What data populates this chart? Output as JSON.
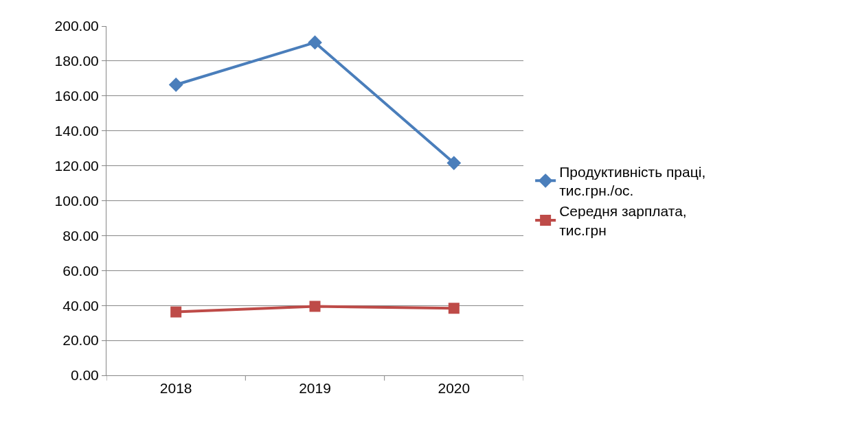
{
  "chart_data": {
    "type": "line",
    "categories": [
      "2018",
      "2019",
      "2020"
    ],
    "series": [
      {
        "name": "Продуктивність праці, тис.грн./ос.",
        "color": "#4a7ebb",
        "values": [
          166.4,
          190.6,
          121.6
        ],
        "marker": "diamond"
      },
      {
        "name": "Середня зарплата, тис.грн",
        "color": "#be4b48",
        "values": [
          36.3,
          39.5,
          38.4
        ],
        "marker": "square"
      }
    ],
    "ylim": [
      0,
      200
    ],
    "yticks": [
      {
        "value": 0,
        "label": "0.00"
      },
      {
        "value": 20,
        "label": "20.00"
      },
      {
        "value": 40,
        "label": "40.00"
      },
      {
        "value": 60,
        "label": "60.00"
      },
      {
        "value": 80,
        "label": "80.00"
      },
      {
        "value": 100,
        "label": "100.00"
      },
      {
        "value": 120,
        "label": "120.00"
      },
      {
        "value": 140,
        "label": "140.00"
      },
      {
        "value": 160,
        "label": "160.00"
      },
      {
        "value": 180,
        "label": "180.00"
      },
      {
        "value": 200,
        "label": "200.00"
      }
    ],
    "grid": "y",
    "legend": "right",
    "line_style": "solid"
  }
}
